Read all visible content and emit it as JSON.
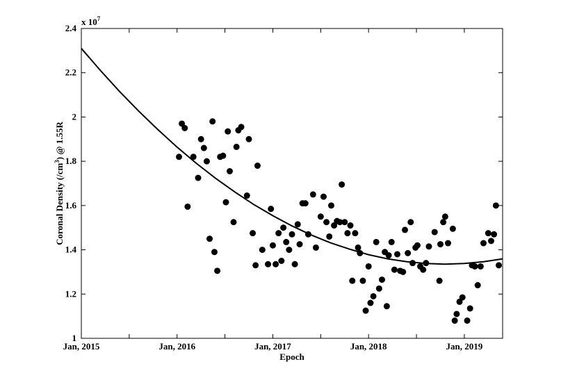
{
  "chart_data": {
    "type": "scatter",
    "xlabel": "Epoch",
    "ylabel": {
      "before": "Coronal Density (/cm",
      "sup": "3",
      "after": ") @ 1.55R"
    },
    "y_multiplier": {
      "base": "x 10",
      "exponent": "7"
    },
    "color": "#000000",
    "xlim": [
      2015,
      2019.4
    ],
    "ylim": [
      1,
      2.4
    ],
    "xticks": [
      {
        "value": 2015,
        "label": "Jan, 2015"
      },
      {
        "value": 2016,
        "label": "Jan, 2016"
      },
      {
        "value": 2017,
        "label": "Jan, 2017"
      },
      {
        "value": 2018,
        "label": "Jan, 2018"
      },
      {
        "value": 2019,
        "label": "Jan, 2019"
      }
    ],
    "xminor_ticks": [
      2015.5,
      2016.5,
      2017.5,
      2018.5
    ],
    "yticks": [
      1,
      1.2,
      1.4,
      1.6,
      1.8,
      2,
      2.2,
      2.4
    ],
    "x": [
      2016.02,
      2016.05,
      2016.08,
      2016.11,
      2016.17,
      2016.22,
      2016.25,
      2016.28,
      2016.31,
      2016.34,
      2016.37,
      2016.39,
      2016.42,
      2016.45,
      2016.48,
      2016.51,
      2016.53,
      2016.55,
      2016.59,
      2016.62,
      2016.64,
      2016.67,
      2016.73,
      2016.75,
      2016.79,
      2016.82,
      2016.84,
      2016.89,
      2016.95,
      2016.98,
      2017.0,
      2017.03,
      2017.06,
      2017.09,
      2017.11,
      2017.14,
      2017.17,
      2017.2,
      2017.23,
      2017.26,
      2017.28,
      2017.31,
      2017.34,
      2017.37,
      2017.42,
      2017.45,
      2017.5,
      2017.53,
      2017.56,
      2017.59,
      2017.61,
      2017.64,
      2017.67,
      2017.7,
      2017.72,
      2017.75,
      2017.78,
      2017.81,
      2017.83,
      2017.86,
      2017.89,
      2017.91,
      2017.94,
      2017.97,
      2018.0,
      2018.02,
      2018.05,
      2018.08,
      2018.11,
      2018.14,
      2018.17,
      2018.19,
      2018.21,
      2018.24,
      2018.27,
      2018.3,
      2018.33,
      2018.36,
      2018.38,
      2018.41,
      2018.44,
      2018.46,
      2018.49,
      2018.51,
      2018.54,
      2018.57,
      2018.6,
      2018.63,
      2018.69,
      2018.74,
      2018.75,
      2018.78,
      2018.8,
      2018.83,
      2018.88,
      2018.9,
      2018.92,
      2018.95,
      2018.98,
      2019.03,
      2019.06,
      2019.08,
      2019.11,
      2019.14,
      2019.17,
      2019.2,
      2019.25,
      2019.28,
      2019.31,
      2019.33,
      2019.36
    ],
    "values": [
      1.82,
      1.97,
      1.95,
      1.595,
      1.82,
      1.725,
      1.9,
      1.86,
      1.8,
      1.45,
      1.98,
      1.39,
      1.305,
      1.82,
      1.825,
      1.615,
      1.935,
      1.755,
      1.525,
      1.865,
      1.94,
      1.955,
      1.645,
      1.9,
      1.475,
      1.33,
      1.78,
      1.4,
      1.335,
      1.585,
      1.42,
      1.335,
      1.475,
      1.35,
      1.5,
      1.435,
      1.4,
      1.47,
      1.335,
      1.515,
      1.425,
      1.61,
      1.61,
      1.47,
      1.65,
      1.41,
      1.55,
      1.64,
      1.525,
      1.46,
      1.6,
      1.51,
      1.53,
      1.525,
      1.695,
      1.525,
      1.475,
      1.51,
      1.26,
      1.475,
      1.41,
      1.385,
      1.26,
      1.125,
      1.325,
      1.16,
      1.19,
      1.435,
      1.225,
      1.265,
      1.39,
      1.145,
      1.375,
      1.435,
      1.31,
      1.38,
      1.305,
      1.3,
      1.49,
      1.385,
      1.525,
      1.34,
      1.41,
      1.42,
      1.325,
      1.31,
      1.34,
      1.415,
      1.48,
      1.26,
      1.425,
      1.525,
      1.55,
      1.43,
      1.495,
      1.08,
      1.11,
      1.165,
      1.185,
      1.08,
      1.135,
      1.33,
      1.325,
      1.24,
      1.325,
      1.43,
      1.475,
      1.44,
      1.47,
      1.6,
      1.33
    ],
    "fit_line": {
      "color": "#000000",
      "x": [
        2015.0,
        2015.2,
        2015.4,
        2015.6,
        2015.8,
        2016.0,
        2016.2,
        2016.4,
        2016.6,
        2016.8,
        2017.0,
        2017.2,
        2017.4,
        2017.6,
        2017.8,
        2018.0,
        2018.2,
        2018.4,
        2018.6,
        2018.8,
        2019.0,
        2019.2,
        2019.4
      ],
      "values": [
        2.31,
        2.21,
        2.115,
        2.026,
        1.943,
        1.864,
        1.791,
        1.724,
        1.662,
        1.605,
        1.554,
        1.508,
        1.467,
        1.432,
        1.403,
        1.378,
        1.359,
        1.346,
        1.338,
        1.335,
        1.338,
        1.346,
        1.359
      ]
    }
  }
}
